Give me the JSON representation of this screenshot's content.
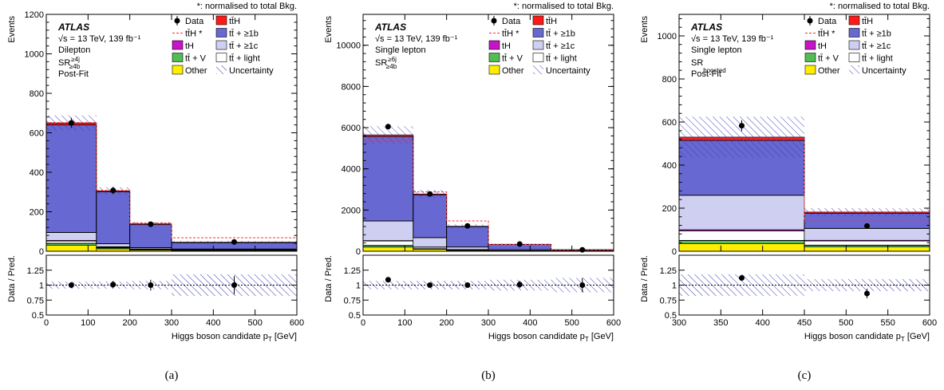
{
  "figure": {
    "experiment": "ATLAS",
    "energy_lumi": "√s = 13 TeV, 139 fb⁻¹",
    "note": "*: normalised to total Bkg.",
    "fit_label": "Post-Fit",
    "xlabel": "Higgs boson candidate p_T [GeV]",
    "ylabel_top": "Events",
    "ylabel_ratio": "Data / Pred.",
    "legend": [
      "Data",
      "tt̄H",
      "tt̄H *",
      "tt̄ + ≥1b",
      "tH",
      "tt̄ + ≥1c",
      "tt̄ + V",
      "tt̄ + light",
      "Other",
      "Uncertainty"
    ],
    "colors": {
      "ttH": "#ff1a1a",
      "ttb": "#6868d2",
      "tH": "#c814c8",
      "ttc": "#cfcff2",
      "ttV": "#55bb55",
      "ttlight": "#ffffff",
      "other": "#ffee00",
      "uncert": "#3a3ab8",
      "ttH_star": "#ff3030"
    }
  },
  "chart_data": [
    {
      "type": "bar",
      "caption": "(a)",
      "channel": "Dilepton",
      "region": "SR",
      "region_sup": "≥4j",
      "region_sub": "≥4b",
      "post_fit": true,
      "bin_edges": [
        0,
        120,
        200,
        300,
        600
      ],
      "stack": {
        "other": [
          30,
          12,
          6,
          4
        ],
        "ttV": [
          10,
          5,
          3,
          2
        ],
        "ttlight": [
          12,
          4,
          2,
          1
        ],
        "tH": [
          3,
          2,
          1,
          1
        ],
        "ttc": [
          40,
          15,
          6,
          3
        ],
        "ttb": [
          545,
          263,
          117,
          32
        ],
        "ttH": [
          10,
          5,
          4,
          3
        ]
      },
      "ttH_star": [
        652,
        308,
        143,
        68
      ],
      "uncertainty": [
        38,
        18,
        9,
        6
      ],
      "data": {
        "x": [
          60,
          160,
          250,
          450
        ],
        "y": [
          650,
          308,
          137,
          47
        ],
        "yerr": [
          26,
          18,
          12,
          7
        ]
      },
      "ylim": [
        0,
        1200
      ],
      "yticks": [
        0,
        200,
        400,
        600,
        800,
        1000,
        1200
      ],
      "xticks": [
        0,
        100,
        200,
        300,
        400,
        500,
        600
      ],
      "ratio": {
        "values": [
          1.0,
          1.01,
          1.0,
          1.0
        ],
        "errs": [
          0.05,
          0.06,
          0.09,
          0.15
        ],
        "uncert": [
          0.06,
          0.06,
          0.07,
          0.18
        ]
      }
    },
    {
      "type": "bar",
      "caption": "(b)",
      "channel": "Single lepton",
      "region": "SR",
      "region_sup": "≥6j",
      "region_sub": "≥4b",
      "post_fit": false,
      "bin_edges": [
        0,
        120,
        200,
        300,
        450,
        600
      ],
      "stack": {
        "other": [
          200,
          90,
          40,
          15,
          5
        ],
        "ttV": [
          80,
          30,
          15,
          6,
          2
        ],
        "ttlight": [
          220,
          80,
          25,
          8,
          2
        ],
        "tH": [
          20,
          10,
          5,
          2,
          1
        ],
        "ttc": [
          950,
          450,
          120,
          40,
          10
        ],
        "ttb": [
          4100,
          2080,
          990,
          260,
          50
        ],
        "ttH": [
          80,
          40,
          20,
          8,
          2
        ]
      },
      "ttH_star": [
        5350,
        2880,
        1470,
        330,
        60
      ],
      "uncertainty": [
        420,
        200,
        90,
        30,
        8
      ],
      "data": {
        "x": [
          60,
          160,
          250,
          375,
          525
        ],
        "y": [
          6050,
          2780,
          1230,
          350,
          70
        ],
        "yerr": [
          80,
          55,
          35,
          20,
          9
        ]
      },
      "ylim": [
        0,
        11500
      ],
      "yticks": [
        0,
        2000,
        4000,
        6000,
        8000,
        10000
      ],
      "xticks": [
        0,
        100,
        200,
        300,
        400,
        500,
        600
      ],
      "ratio": {
        "values": [
          1.09,
          1.0,
          1.0,
          1.01,
          1.0
        ],
        "errs": [
          0.02,
          0.02,
          0.03,
          0.06,
          0.12
        ],
        "uncert": [
          0.07,
          0.07,
          0.07,
          0.09,
          0.12
        ]
      }
    },
    {
      "type": "bar",
      "caption": "(c)",
      "channel": "Single lepton",
      "region": "SR",
      "region_sup": "",
      "region_sub": "boosted",
      "post_fit": true,
      "bin_edges": [
        300,
        450,
        600
      ],
      "stack": {
        "other": [
          35,
          20
        ],
        "ttV": [
          15,
          8
        ],
        "ttlight": [
          45,
          20
        ],
        "tH": [
          5,
          3
        ],
        "ttc": [
          160,
          55
        ],
        "ttb": [
          255,
          70
        ],
        "ttH": [
          15,
          6
        ]
      },
      "ttH_star": [
        520,
        140
      ],
      "uncertainty": [
        95,
        18
      ],
      "data": {
        "x": [
          375,
          525
        ],
        "y": [
          583,
          117
        ],
        "yerr": [
          25,
          12
        ]
      },
      "ylim": [
        0,
        1100
      ],
      "yticks": [
        0,
        200,
        400,
        600,
        800,
        1000
      ],
      "xticks": [
        300,
        350,
        400,
        450,
        500,
        550,
        600
      ],
      "ratio": {
        "values": [
          1.12,
          0.86
        ],
        "errs": [
          0.05,
          0.08
        ],
        "uncert": [
          0.18,
          0.1
        ]
      }
    }
  ]
}
